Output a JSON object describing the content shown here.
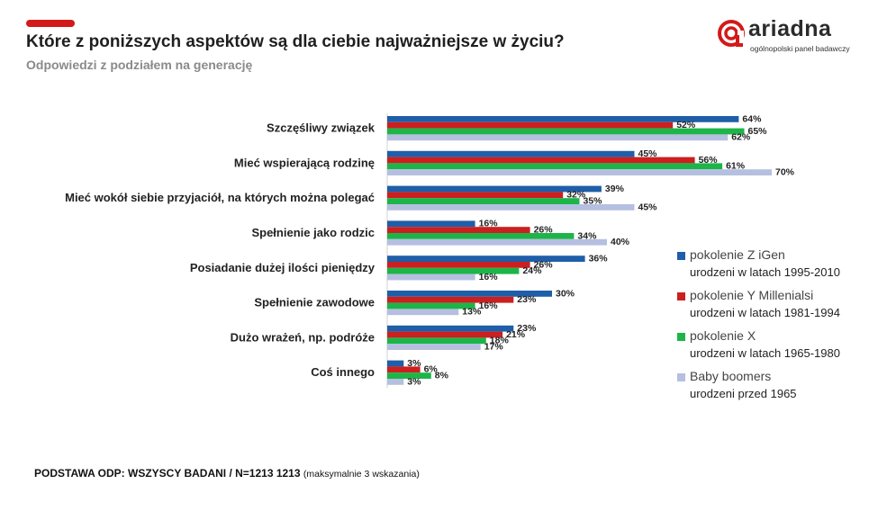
{
  "header": {
    "title": "Które z poniższych aspektów są dla ciebie najważniejsze w życiu?",
    "subtitle": "Odpowiedzi z podziałem na generację",
    "accent_color": "#d21a1a"
  },
  "logo": {
    "name": "ariadna",
    "tagline": "ogólnopolski panel badawczy",
    "icon": "ariadna-logo-icon"
  },
  "chart_data": {
    "type": "bar",
    "orientation": "horizontal",
    "categories": [
      "Szczęśliwy związek",
      "Mieć wspierającą rodzinę",
      "Mieć wokół siebie przyjaciół, na których można polegać",
      "Spełnienie jako rodzic",
      "Posiadanie dużej ilości pieniędzy",
      "Spełnienie zawodowe",
      "Dużo wrażeń, np. podróże",
      "Coś innego"
    ],
    "series": [
      {
        "name": "pokolenie Z iGen",
        "subtitle": "urodzeni w latach 1995-2010",
        "color": "#1f5ea8",
        "values": [
          64,
          45,
          39,
          16,
          36,
          30,
          23,
          3
        ],
        "labels": [
          "64%",
          "45%",
          "39%",
          "16%",
          "36%",
          "30%",
          "23%",
          "3%"
        ]
      },
      {
        "name": "pokolenie Y Millenialsi",
        "subtitle": "urodzeni w latach 1981-1994",
        "color": "#cc1f1f",
        "values": [
          52,
          56,
          32,
          26,
          26,
          23,
          21,
          6
        ],
        "labels": [
          "52%",
          "56%",
          "32%",
          "26%",
          "26%",
          "23%",
          "21%",
          "6%"
        ]
      },
      {
        "name": "pokolenie X",
        "subtitle": "urodzeni w latach 1965-1980",
        "color": "#1db548",
        "values": [
          65,
          61,
          35,
          34,
          24,
          16,
          18,
          8
        ],
        "labels": [
          "65%",
          "61%",
          "35%",
          "34%",
          "24%",
          "16%",
          "18%",
          "8%"
        ]
      },
      {
        "name": "Baby boomers",
        "subtitle": "urodzeni przed 1965",
        "color": "#b5bfe0",
        "values": [
          62,
          70,
          45,
          40,
          16,
          13,
          17,
          3
        ],
        "labels": [
          "62%",
          "70%",
          "45%",
          "40%",
          "16%",
          "13%",
          "17%",
          "3%"
        ]
      }
    ],
    "xlim": [
      0,
      100
    ],
    "legend_position": "right"
  },
  "footer": {
    "base_label": "PODSTAWA ODP: WSZYSCY BADANI / N=1213 1213",
    "note": "(maksymalnie 3 wskazania)"
  }
}
